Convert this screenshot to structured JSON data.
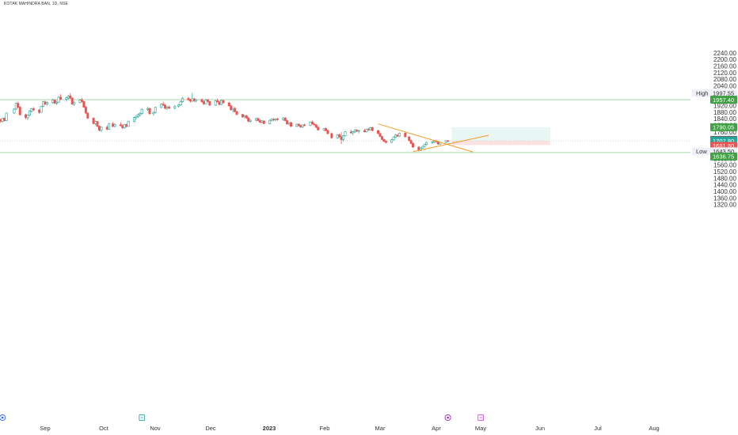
{
  "symbol_label": "KOTAK MAHINDRA BAN, 1D, NSE",
  "colors": {
    "up": "#26a69a",
    "down": "#ef5350",
    "level_line": "#a5d6a7",
    "trendline": "#f59a23",
    "target_zone": "#e8f6f4",
    "stop_zone": "#fde2e3",
    "grid_text": "#333333"
  },
  "chart_data": {
    "type": "candlestick",
    "title": "",
    "xlabel": "",
    "ylabel": "",
    "ylim": [
      1300,
      2260
    ],
    "x_tick_labels": [
      "Sep",
      "Oct",
      "Nov",
      "Dec",
      "2023",
      "Feb",
      "Mar",
      "Apr",
      "May",
      "Jun",
      "Jul",
      "Aug"
    ],
    "y_tick_labels": [
      1320,
      1360,
      1400,
      1440,
      1480,
      1520,
      1560,
      1600,
      1640,
      1680,
      1720,
      1760,
      1800,
      1840,
      1880,
      1920,
      1960,
      2000,
      2040,
      2080,
      2120,
      2160,
      2200,
      2240
    ],
    "high": {
      "label": "High",
      "value": "1997.55"
    },
    "low": {
      "label": "Low",
      "value": "1643.50"
    },
    "resistance_level": {
      "value": "1957.40"
    },
    "support_level": {
      "value": "1636.75"
    },
    "target_price": {
      "value": "1790.05"
    },
    "entry_price": {
      "value": "1708.55"
    },
    "last_price": {
      "value": "1707.80",
      "countdown": "02:12:12"
    },
    "stop_price": {
      "value": "1681.80"
    },
    "trendlines": [
      {
        "from": {
          "date": "2023-02-20",
          "price": 1810
        },
        "to": {
          "date": "2023-04-10",
          "price": 1640
        }
      },
      {
        "from": {
          "date": "2023-03-10",
          "price": 1642
        },
        "to": {
          "date": "2023-04-18",
          "price": 1741
        }
      }
    ],
    "position": {
      "start_date": "2023-03-30",
      "end_date": "2023-05-20",
      "entry": 1708.55,
      "target": 1790.05,
      "stop": 1681.8
    },
    "events": [
      {
        "date": "2022-08-10",
        "icon": "dividend-icon",
        "color": "#2962ff"
      },
      {
        "date": "2022-10-21",
        "icon": "earnings-icon",
        "color": "#26a69a"
      },
      {
        "date": "2023-03-28",
        "icon": "split-icon",
        "color": "#9c27b0"
      },
      {
        "date": "2023-04-14",
        "icon": "calendar-icon",
        "color": "#e040fb"
      }
    ],
    "candles": [
      [
        "2022-08-01",
        1880,
        1895,
        1855,
        1862
      ],
      [
        "2022-08-02",
        1862,
        1870,
        1840,
        1848
      ],
      [
        "2022-08-03",
        1848,
        1858,
        1822,
        1830
      ],
      [
        "2022-08-04",
        1830,
        1850,
        1825,
        1845
      ],
      [
        "2022-08-05",
        1845,
        1852,
        1818,
        1822
      ],
      [
        "2022-08-08",
        1822,
        1840,
        1815,
        1836
      ],
      [
        "2022-08-09",
        1836,
        1842,
        1818,
        1826
      ],
      [
        "2022-08-10",
        1826,
        1848,
        1820,
        1844
      ],
      [
        "2022-08-11",
        1844,
        1850,
        1825,
        1830
      ],
      [
        "2022-08-12",
        1830,
        1880,
        1828,
        1876
      ],
      [
        "2022-08-16",
        1876,
        1905,
        1870,
        1900
      ],
      [
        "2022-08-17",
        1900,
        1940,
        1895,
        1935
      ],
      [
        "2022-08-18",
        1935,
        1945,
        1905,
        1912
      ],
      [
        "2022-08-19",
        1912,
        1918,
        1860,
        1866
      ],
      [
        "2022-08-22",
        1866,
        1872,
        1840,
        1848
      ],
      [
        "2022-08-23",
        1848,
        1868,
        1835,
        1862
      ],
      [
        "2022-08-24",
        1862,
        1892,
        1858,
        1888
      ],
      [
        "2022-08-25",
        1888,
        1908,
        1880,
        1902
      ],
      [
        "2022-08-26",
        1902,
        1912,
        1888,
        1895
      ],
      [
        "2022-08-29",
        1895,
        1900,
        1872,
        1880
      ],
      [
        "2022-08-30",
        1880,
        1920,
        1878,
        1916
      ],
      [
        "2022-08-31",
        1916,
        1950,
        1912,
        1944
      ],
      [
        "2022-09-01",
        1944,
        1952,
        1925,
        1930
      ],
      [
        "2022-09-02",
        1930,
        1946,
        1922,
        1940
      ],
      [
        "2022-09-05",
        1940,
        1962,
        1932,
        1955
      ],
      [
        "2022-09-06",
        1955,
        1960,
        1930,
        1936
      ],
      [
        "2022-09-07",
        1936,
        1948,
        1925,
        1942
      ],
      [
        "2022-09-08",
        1942,
        1978,
        1938,
        1972
      ],
      [
        "2022-09-09",
        1972,
        1990,
        1955,
        1960
      ],
      [
        "2022-09-12",
        1960,
        1975,
        1946,
        1968
      ],
      [
        "2022-09-13",
        1968,
        1985,
        1960,
        1980
      ],
      [
        "2022-09-14",
        1980,
        1997,
        1962,
        1966
      ],
      [
        "2022-09-15",
        1966,
        1972,
        1925,
        1930
      ],
      [
        "2022-09-16",
        1930,
        1946,
        1918,
        1940
      ],
      [
        "2022-09-19",
        1940,
        1962,
        1935,
        1955
      ],
      [
        "2022-09-20",
        1955,
        1968,
        1940,
        1946
      ],
      [
        "2022-09-21",
        1946,
        1950,
        1908,
        1912
      ],
      [
        "2022-09-22",
        1912,
        1918,
        1870,
        1876
      ],
      [
        "2022-09-23",
        1876,
        1880,
        1840,
        1845
      ],
      [
        "2022-09-26",
        1845,
        1850,
        1808,
        1812
      ],
      [
        "2022-09-27",
        1812,
        1830,
        1802,
        1825
      ],
      [
        "2022-09-28",
        1825,
        1828,
        1790,
        1795
      ],
      [
        "2022-09-29",
        1795,
        1802,
        1765,
        1772
      ],
      [
        "2022-09-30",
        1772,
        1795,
        1760,
        1790
      ],
      [
        "2022-10-03",
        1790,
        1800,
        1772,
        1778
      ],
      [
        "2022-10-04",
        1778,
        1815,
        1775,
        1810
      ],
      [
        "2022-10-06",
        1810,
        1822,
        1790,
        1796
      ],
      [
        "2022-10-07",
        1796,
        1812,
        1788,
        1806
      ],
      [
        "2022-10-10",
        1806,
        1820,
        1795,
        1800
      ],
      [
        "2022-10-11",
        1800,
        1806,
        1780,
        1786
      ],
      [
        "2022-10-12",
        1786,
        1810,
        1782,
        1806
      ],
      [
        "2022-10-13",
        1806,
        1812,
        1790,
        1795
      ],
      [
        "2022-10-14",
        1795,
        1830,
        1792,
        1826
      ],
      [
        "2022-10-17",
        1826,
        1852,
        1820,
        1848
      ],
      [
        "2022-10-18",
        1848,
        1862,
        1838,
        1856
      ],
      [
        "2022-10-19",
        1856,
        1872,
        1848,
        1866
      ],
      [
        "2022-10-20",
        1866,
        1880,
        1855,
        1874
      ],
      [
        "2022-10-21",
        1874,
        1905,
        1868,
        1898
      ],
      [
        "2022-10-24",
        1898,
        1912,
        1890,
        1904
      ],
      [
        "2022-10-25",
        1904,
        1910,
        1865,
        1872
      ],
      [
        "2022-10-27",
        1872,
        1886,
        1862,
        1880
      ],
      [
        "2022-10-28",
        1880,
        1915,
        1875,
        1910
      ],
      [
        "2022-10-31",
        1910,
        1935,
        1905,
        1930
      ],
      [
        "2022-11-01",
        1930,
        1945,
        1918,
        1924
      ],
      [
        "2022-11-02",
        1924,
        1930,
        1898,
        1905
      ],
      [
        "2022-11-03",
        1905,
        1918,
        1895,
        1912
      ],
      [
        "2022-11-04",
        1912,
        1920,
        1900,
        1906
      ],
      [
        "2022-11-07",
        1906,
        1922,
        1898,
        1916
      ],
      [
        "2022-11-09",
        1916,
        1932,
        1908,
        1926
      ],
      [
        "2022-11-10",
        1926,
        1952,
        1920,
        1946
      ],
      [
        "2022-11-11",
        1946,
        1972,
        1940,
        1965
      ],
      [
        "2022-11-14",
        1965,
        1975,
        1950,
        1956
      ],
      [
        "2022-11-15",
        1956,
        1962,
        1940,
        1948
      ],
      [
        "2022-11-16",
        1948,
        1998,
        1944,
        1962
      ],
      [
        "2022-11-17",
        1962,
        1968,
        1942,
        1950
      ],
      [
        "2022-11-18",
        1950,
        1962,
        1940,
        1958
      ],
      [
        "2022-11-21",
        1958,
        1964,
        1938,
        1944
      ],
      [
        "2022-11-22",
        1944,
        1952,
        1925,
        1932
      ],
      [
        "2022-11-23",
        1932,
        1960,
        1930,
        1955
      ],
      [
        "2022-11-24",
        1955,
        1962,
        1940,
        1946
      ],
      [
        "2022-11-25",
        1946,
        1950,
        1918,
        1924
      ],
      [
        "2022-11-28",
        1924,
        1955,
        1920,
        1950
      ],
      [
        "2022-11-29",
        1950,
        1962,
        1940,
        1944
      ],
      [
        "2022-11-30",
        1944,
        1952,
        1922,
        1928
      ],
      [
        "2022-12-01",
        1928,
        1958,
        1925,
        1952
      ],
      [
        "2022-12-02",
        1952,
        1958,
        1932,
        1938
      ],
      [
        "2022-12-05",
        1938,
        1945,
        1915,
        1920
      ],
      [
        "2022-12-06",
        1920,
        1925,
        1890,
        1896
      ],
      [
        "2022-12-07",
        1896,
        1908,
        1880,
        1904
      ],
      [
        "2022-12-08",
        1904,
        1912,
        1880,
        1885
      ],
      [
        "2022-12-09",
        1885,
        1890,
        1862,
        1868
      ],
      [
        "2022-12-12",
        1868,
        1872,
        1848,
        1852
      ],
      [
        "2022-12-13",
        1852,
        1866,
        1846,
        1860
      ],
      [
        "2022-12-14",
        1860,
        1866,
        1842,
        1846
      ],
      [
        "2022-12-15",
        1846,
        1852,
        1820,
        1826
      ],
      [
        "2022-12-16",
        1826,
        1838,
        1818,
        1832
      ],
      [
        "2022-12-19",
        1832,
        1848,
        1826,
        1842
      ],
      [
        "2022-12-20",
        1842,
        1850,
        1826,
        1830
      ],
      [
        "2022-12-21",
        1830,
        1838,
        1815,
        1820
      ],
      [
        "2022-12-22",
        1820,
        1834,
        1812,
        1828
      ],
      [
        "2022-12-23",
        1828,
        1832,
        1808,
        1812
      ],
      [
        "2022-12-26",
        1812,
        1836,
        1808,
        1832
      ],
      [
        "2022-12-27",
        1832,
        1844,
        1825,
        1838
      ],
      [
        "2022-12-28",
        1838,
        1846,
        1828,
        1834
      ],
      [
        "2022-12-29",
        1834,
        1845,
        1826,
        1840
      ],
      [
        "2022-12-30",
        1840,
        1848,
        1830,
        1836
      ],
      [
        "2023-01-02",
        1836,
        1850,
        1830,
        1846
      ],
      [
        "2023-01-03",
        1846,
        1852,
        1826,
        1830
      ],
      [
        "2023-01-04",
        1830,
        1836,
        1805,
        1810
      ],
      [
        "2023-01-05",
        1810,
        1822,
        1800,
        1818
      ],
      [
        "2023-01-06",
        1818,
        1824,
        1790,
        1796
      ],
      [
        "2023-01-09",
        1796,
        1812,
        1790,
        1808
      ],
      [
        "2023-01-10",
        1808,
        1815,
        1794,
        1800
      ],
      [
        "2023-01-11",
        1800,
        1806,
        1786,
        1792
      ],
      [
        "2023-01-12",
        1792,
        1808,
        1786,
        1804
      ],
      [
        "2023-01-13",
        1804,
        1812,
        1796,
        1802
      ],
      [
        "2023-01-16",
        1802,
        1826,
        1798,
        1822
      ],
      [
        "2023-01-17",
        1822,
        1830,
        1805,
        1810
      ],
      [
        "2023-01-18",
        1810,
        1818,
        1798,
        1804
      ],
      [
        "2023-01-19",
        1804,
        1810,
        1785,
        1790
      ],
      [
        "2023-01-20",
        1790,
        1796,
        1770,
        1774
      ],
      [
        "2023-01-23",
        1774,
        1786,
        1768,
        1782
      ],
      [
        "2023-01-24",
        1782,
        1790,
        1765,
        1770
      ],
      [
        "2023-01-25",
        1770,
        1776,
        1745,
        1752
      ],
      [
        "2023-01-27",
        1752,
        1758,
        1720,
        1726
      ],
      [
        "2023-01-30",
        1726,
        1748,
        1720,
        1744
      ],
      [
        "2023-01-31",
        1744,
        1752,
        1726,
        1732
      ],
      [
        "2023-02-01",
        1732,
        1760,
        1688,
        1715
      ],
      [
        "2023-02-02",
        1715,
        1742,
        1705,
        1738
      ],
      [
        "2023-02-03",
        1738,
        1766,
        1734,
        1762
      ],
      [
        "2023-02-06",
        1762,
        1775,
        1750,
        1756
      ],
      [
        "2023-02-07",
        1756,
        1768,
        1742,
        1764
      ],
      [
        "2023-02-08",
        1764,
        1778,
        1755,
        1772
      ],
      [
        "2023-02-09",
        1772,
        1780,
        1760,
        1766
      ],
      [
        "2023-02-10",
        1766,
        1774,
        1752,
        1770
      ],
      [
        "2023-02-13",
        1770,
        1778,
        1758,
        1762
      ],
      [
        "2023-02-14",
        1762,
        1782,
        1758,
        1778
      ],
      [
        "2023-02-15",
        1778,
        1786,
        1768,
        1774
      ],
      [
        "2023-02-16",
        1774,
        1792,
        1770,
        1788
      ],
      [
        "2023-02-17",
        1788,
        1794,
        1765,
        1770
      ],
      [
        "2023-02-20",
        1770,
        1774,
        1748,
        1752
      ],
      [
        "2023-02-21",
        1752,
        1758,
        1730,
        1734
      ],
      [
        "2023-02-22",
        1734,
        1738,
        1712,
        1716
      ],
      [
        "2023-02-23",
        1716,
        1722,
        1700,
        1705
      ],
      [
        "2023-02-24",
        1705,
        1712,
        1692,
        1698
      ],
      [
        "2023-02-27",
        1698,
        1718,
        1694,
        1714
      ],
      [
        "2023-02-28",
        1714,
        1735,
        1708,
        1730
      ],
      [
        "2023-03-01",
        1730,
        1748,
        1726,
        1742
      ],
      [
        "2023-03-02",
        1742,
        1750,
        1732,
        1736
      ],
      [
        "2023-03-03",
        1736,
        1758,
        1732,
        1754
      ],
      [
        "2023-03-06",
        1754,
        1760,
        1728,
        1732
      ],
      [
        "2023-03-08",
        1732,
        1736,
        1705,
        1710
      ],
      [
        "2023-03-09",
        1710,
        1716,
        1686,
        1692
      ],
      [
        "2023-03-10",
        1692,
        1698,
        1664,
        1670
      ],
      [
        "2023-03-13",
        1670,
        1675,
        1643,
        1650
      ],
      [
        "2023-03-14",
        1650,
        1668,
        1646,
        1664
      ],
      [
        "2023-03-15",
        1664,
        1678,
        1660,
        1674
      ],
      [
        "2023-03-16",
        1674,
        1690,
        1668,
        1686
      ],
      [
        "2023-03-17",
        1686,
        1702,
        1680,
        1698
      ],
      [
        "2023-03-20",
        1698,
        1706,
        1690,
        1700
      ],
      [
        "2023-03-21",
        1700,
        1712,
        1694,
        1708
      ],
      [
        "2023-03-22",
        1708,
        1714,
        1696,
        1702
      ],
      [
        "2023-03-23",
        1702,
        1708,
        1684,
        1688
      ],
      [
        "2023-03-24",
        1688,
        1702,
        1684,
        1698
      ],
      [
        "2023-03-27",
        1698,
        1712,
        1694,
        1708
      ],
      [
        "2023-03-28",
        1708,
        1712,
        1700,
        1707.8
      ]
    ]
  }
}
